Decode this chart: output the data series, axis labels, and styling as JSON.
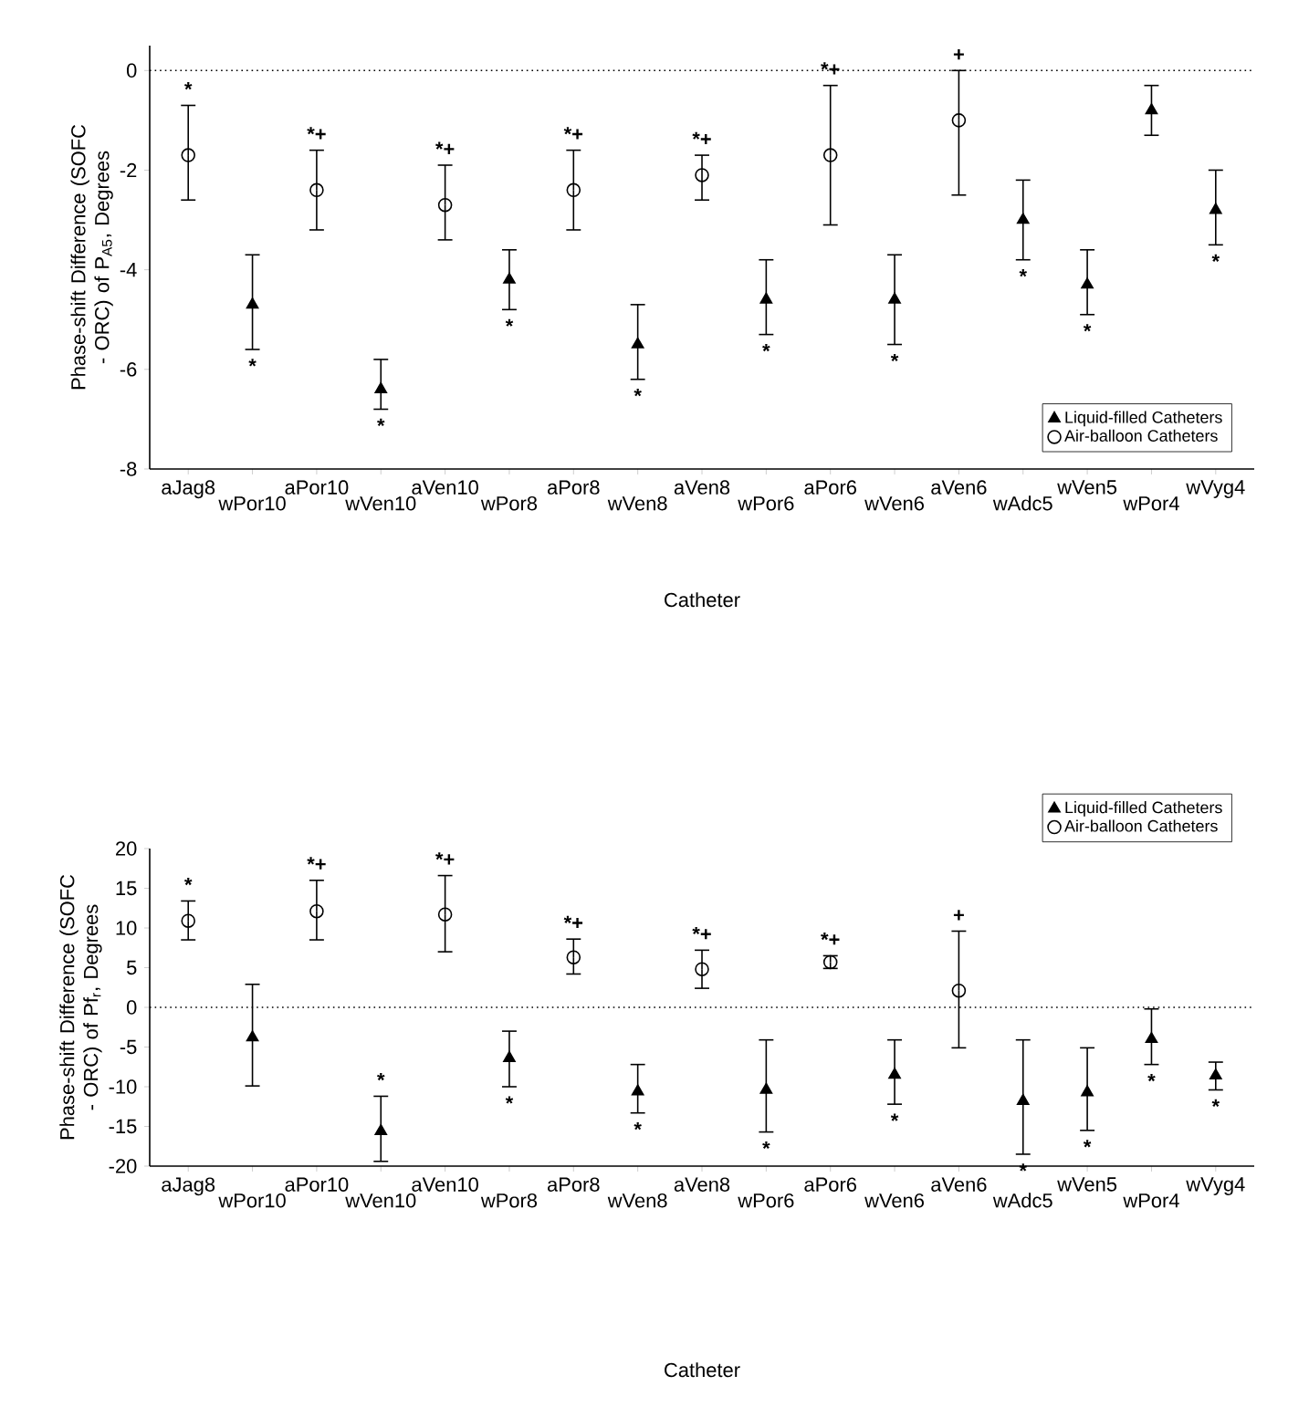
{
  "chart_data": [
    {
      "type": "scatter",
      "xlabel": "Catheter",
      "ylabel": "Phase-shift Difference (SOFC - ORC) of P$_{A5}$, Degrees",
      "categories": [
        "aJag8",
        "wPor10",
        "aPor10",
        "wVen10",
        "aVen10",
        "wPor8",
        "aPor8",
        "wVen8",
        "aVen8",
        "wPor6",
        "aPor6",
        "wVen6",
        "aVen6",
        "wAdc5",
        "wVen5",
        "wPor4",
        "wVyg4"
      ],
      "series": [
        {
          "name": "Liquid-filled Catheters",
          "color": "#000000",
          "marker": "triangle",
          "values": [
            null,
            -4.7,
            null,
            -6.4,
            null,
            -4.2,
            null,
            -5.5,
            null,
            -4.6,
            null,
            -4.6,
            null,
            -3.0,
            -4.3,
            -0.8,
            -2.8
          ],
          "errors": [
            null,
            [
              -5.6,
              -3.7
            ],
            null,
            [
              -6.8,
              -5.8
            ],
            null,
            [
              -4.8,
              -3.6
            ],
            null,
            [
              -6.2,
              -4.7
            ],
            null,
            [
              -5.3,
              -3.8
            ],
            null,
            [
              -5.5,
              -3.7
            ],
            null,
            [
              -3.8,
              -2.2
            ],
            [
              -4.9,
              -3.6
            ],
            [
              -1.3,
              -0.3
            ],
            [
              -3.5,
              -2.0
            ]
          ]
        },
        {
          "name": "Air-balloon Catheters",
          "color": "#000000",
          "marker": "circle",
          "values": [
            -1.7,
            null,
            -2.4,
            null,
            -2.7,
            null,
            -2.4,
            null,
            -2.1,
            null,
            -1.7,
            null,
            -1.0,
            null,
            null,
            null,
            null
          ],
          "errors": [
            [
              -2.6,
              -0.7
            ],
            null,
            [
              -3.2,
              -1.6
            ],
            null,
            [
              -3.4,
              -1.9
            ],
            null,
            [
              -3.2,
              -1.6
            ],
            null,
            [
              -2.6,
              -1.7
            ],
            null,
            [
              -3.1,
              -0.3
            ],
            null,
            [
              -2.5,
              0
            ],
            null,
            null,
            null,
            null
          ]
        }
      ],
      "ylim": [
        -8,
        0.5
      ],
      "yticks": [
        -8,
        -6,
        -4,
        -2,
        0
      ],
      "legend": "bottom right",
      "ref_lines": [
        {
          "axis": "y",
          "value": 0,
          "line_style": "dotted"
        }
      ],
      "annotations": [
        {
          "text": "*",
          "x": "aJag8",
          "y": -0.7
        },
        {
          "text": "*",
          "x": "wPor10",
          "y": -5.6
        },
        {
          "text": "*+",
          "x": "aPor10",
          "y": -1.6
        },
        {
          "text": "*",
          "x": "wVen10",
          "y": -6.8
        },
        {
          "text": "*+",
          "x": "aVen10",
          "y": -1.9
        },
        {
          "text": "*",
          "x": "wPor8",
          "y": -4.8
        },
        {
          "text": "*+",
          "x": "aPor8",
          "y": -1.6
        },
        {
          "text": "*",
          "x": "wVen8",
          "y": -6.2
        },
        {
          "text": "*+",
          "x": "aVen8",
          "y": -1.7
        },
        {
          "text": "*",
          "x": "wPor6",
          "y": -5.3
        },
        {
          "text": "*+",
          "x": "aPor6",
          "y": -0.3
        },
        {
          "text": "*",
          "x": "wVen6",
          "y": -5.5
        },
        {
          "text": "+",
          "x": "aVen6",
          "y": 0
        },
        {
          "text": "*",
          "x": "wAdc5",
          "y": -3.8
        },
        {
          "text": "*",
          "x": "wVen5",
          "y": -4.9
        },
        {
          "text": "*",
          "x": "wVyg4",
          "y": -3.5
        }
      ]
    },
    {
      "type": "scatter",
      "xlabel": "Catheter",
      "ylabel": "Phase-shift Difference (SOFC - ORC) of Pf$_{r}$, Degrees",
      "categories": [
        "aJag8",
        "wPor10",
        "aPor10",
        "wVen10",
        "aVen10",
        "wPor8",
        "aPor8",
        "wVen8",
        "aVen8",
        "wPor6",
        "aPor6",
        "wVen6",
        "aVen6",
        "wAdc5",
        "wVen5",
        "wPor4",
        "wVyg4"
      ],
      "series": [
        {
          "name": "Liquid-filled Catheters",
          "color": "#000000",
          "marker": "triangle",
          "values": [
            null,
            -3.8,
            null,
            -15.6,
            null,
            -6.4,
            null,
            -10.6,
            null,
            -10.4,
            null,
            -8.5,
            null,
            -11.8,
            -10.7,
            -4.0,
            -8.6
          ],
          "errors": [
            null,
            [
              -9.9,
              2.9
            ],
            null,
            [
              -19.4,
              -11.2
            ],
            null,
            [
              -10.0,
              -3.0
            ],
            null,
            [
              -13.3,
              -7.2
            ],
            null,
            [
              -15.7,
              -4.1
            ],
            null,
            [
              -12.2,
              -4.1
            ],
            null,
            [
              -18.5,
              -4.1
            ],
            [
              -15.5,
              -5.1
            ],
            [
              -7.2,
              -0.2
            ],
            [
              -10.4,
              -6.9
            ]
          ]
        },
        {
          "name": "Air-balloon Catheters",
          "color": "#000000",
          "marker": "circle",
          "values": [
            10.9,
            null,
            12.1,
            null,
            11.7,
            null,
            6.3,
            null,
            4.8,
            null,
            5.7,
            null,
            2.1,
            null,
            null,
            null,
            null
          ],
          "errors": [
            [
              8.5,
              13.4
            ],
            null,
            [
              8.5,
              16.0
            ],
            null,
            [
              7.0,
              16.6
            ],
            null,
            [
              4.2,
              8.6
            ],
            null,
            [
              2.4,
              7.2
            ],
            null,
            [
              4.9,
              6.5
            ],
            null,
            [
              -5.1,
              9.6
            ],
            null,
            null,
            null,
            null
          ]
        }
      ],
      "ylim": [
        -20,
        20
      ],
      "yticks": [
        -20,
        -15,
        -10,
        -5,
        0,
        5,
        10,
        15,
        20
      ],
      "legend": "top right",
      "ref_lines": [
        {
          "axis": "y",
          "value": 0,
          "line_style": "dotted"
        }
      ],
      "annotations": [
        {
          "text": "*",
          "x": "aJag8",
          "y": 13.4
        },
        {
          "text": "*+",
          "x": "aPor10",
          "y": 16.0
        },
        {
          "text": "*",
          "x": "wVen10",
          "y": -11.2
        },
        {
          "text": "*+",
          "x": "aVen10",
          "y": 16.6
        },
        {
          "text": "*",
          "x": "wPor8",
          "y": -10.0
        },
        {
          "text": "*+",
          "x": "aPor8",
          "y": 8.6
        },
        {
          "text": "*",
          "x": "wVen8",
          "y": -13.3
        },
        {
          "text": "*+",
          "x": "aVen8",
          "y": 7.2
        },
        {
          "text": "*",
          "x": "wPor6",
          "y": -15.7
        },
        {
          "text": "*+",
          "x": "aPor6",
          "y": 6.5
        },
        {
          "text": "*",
          "x": "wVen6",
          "y": -12.2
        },
        {
          "text": "+",
          "x": "aVen6",
          "y": 9.6
        },
        {
          "text": "*",
          "x": "wAdc5",
          "y": -18.5
        },
        {
          "text": "*",
          "x": "wVen5",
          "y": -15.5
        },
        {
          "text": "*",
          "x": "wPor4",
          "y": -7.2
        },
        {
          "text": "*",
          "x": "wVyg4",
          "y": -10.4
        }
      ]
    }
  ]
}
